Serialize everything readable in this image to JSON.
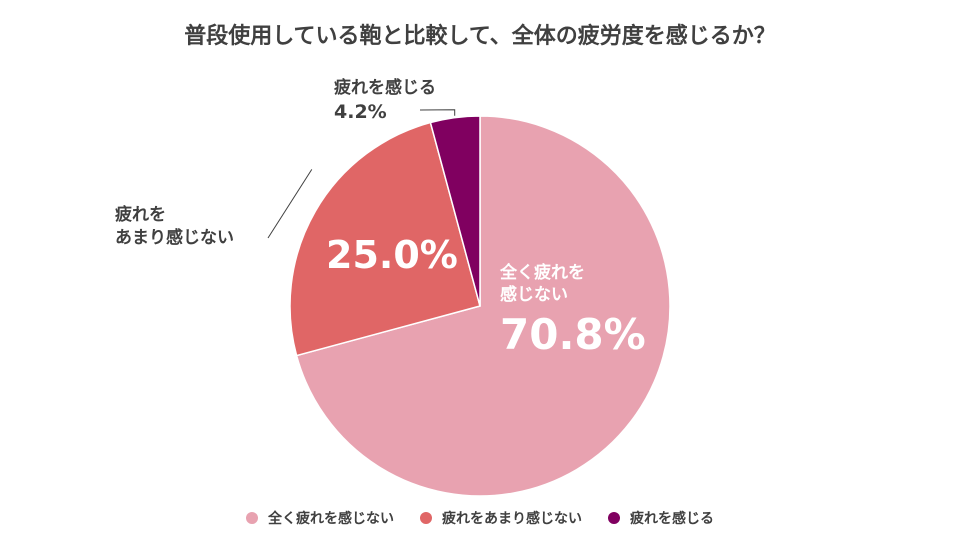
{
  "chart_data": {
    "type": "pie",
    "title": "普段使用している鞄と比較して、全体の疲労度を感じるか？",
    "slices": [
      {
        "label": "全く疲れを感じない",
        "display_label": [
          "全く疲れを",
          "感じない"
        ],
        "value": 70.8,
        "value_label": "70.8%",
        "color": "#E8A2B0"
      },
      {
        "label": "疲れをあまり感じない",
        "display_label": [
          "疲れを",
          "あまり感じない"
        ],
        "value": 25.0,
        "value_label": "25.0%",
        "color": "#E06666"
      },
      {
        "label": "疲れを感じる",
        "display_label": [
          "疲れを感じる"
        ],
        "value": 4.2,
        "value_label": "4.2%",
        "color": "#800060"
      }
    ],
    "legend": {
      "position": "bottom"
    }
  }
}
